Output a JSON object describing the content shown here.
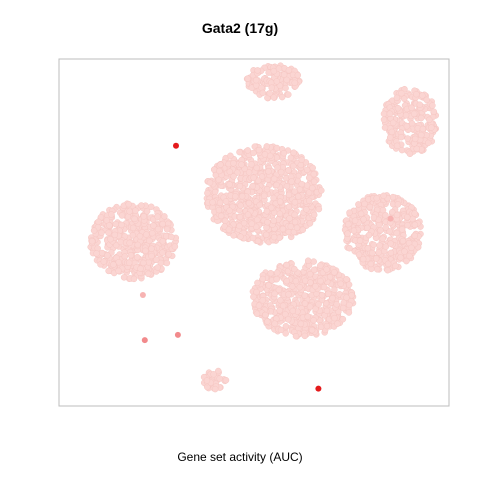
{
  "chart_data": {
    "type": "scatter",
    "title": "Gata2 (17g)",
    "xlabel": "Gene set activity (AUC)",
    "ylabel": "",
    "grid": false,
    "axes_visible": false,
    "colors": {
      "background_cells": "#fbd5d2",
      "background_cells_edge": "#f6c7c3",
      "high_activity": "#e41a1c",
      "medium_activity": "#f28a8c",
      "low_activity": "#f7b3b2",
      "frame": "#bdbdbd"
    },
    "clusters": [
      {
        "name": "top",
        "cx": 0.1,
        "cy": 0.87,
        "rx": 0.14,
        "ry": 0.1
      },
      {
        "name": "upper-right",
        "cx": 0.8,
        "cy": 0.64,
        "rx": 0.14,
        "ry": 0.19
      },
      {
        "name": "left",
        "cx": -0.62,
        "cy": -0.05,
        "rx": 0.22,
        "ry": 0.22
      },
      {
        "name": "center",
        "cx": 0.05,
        "cy": 0.22,
        "rx": 0.3,
        "ry": 0.28
      },
      {
        "name": "lower-center",
        "cx": 0.25,
        "cy": -0.38,
        "rx": 0.26,
        "ry": 0.22
      },
      {
        "name": "right",
        "cx": 0.66,
        "cy": 0.0,
        "rx": 0.2,
        "ry": 0.22
      },
      {
        "name": "small-bottom",
        "cx": -0.2,
        "cy": -0.85,
        "rx": 0.06,
        "ry": 0.06
      }
    ],
    "highlighted_points": [
      {
        "x": -0.4,
        "y": 0.5,
        "level": "high"
      },
      {
        "x": 0.33,
        "y": -0.9,
        "level": "high"
      },
      {
        "x": -0.56,
        "y": -0.62,
        "level": "medium"
      },
      {
        "x": -0.39,
        "y": -0.59,
        "level": "medium"
      },
      {
        "x": -0.57,
        "y": -0.36,
        "level": "low"
      },
      {
        "x": 0.7,
        "y": 0.08,
        "level": "low"
      }
    ],
    "xlim": [
      -1,
      1
    ],
    "ylim": [
      -1,
      1
    ]
  }
}
